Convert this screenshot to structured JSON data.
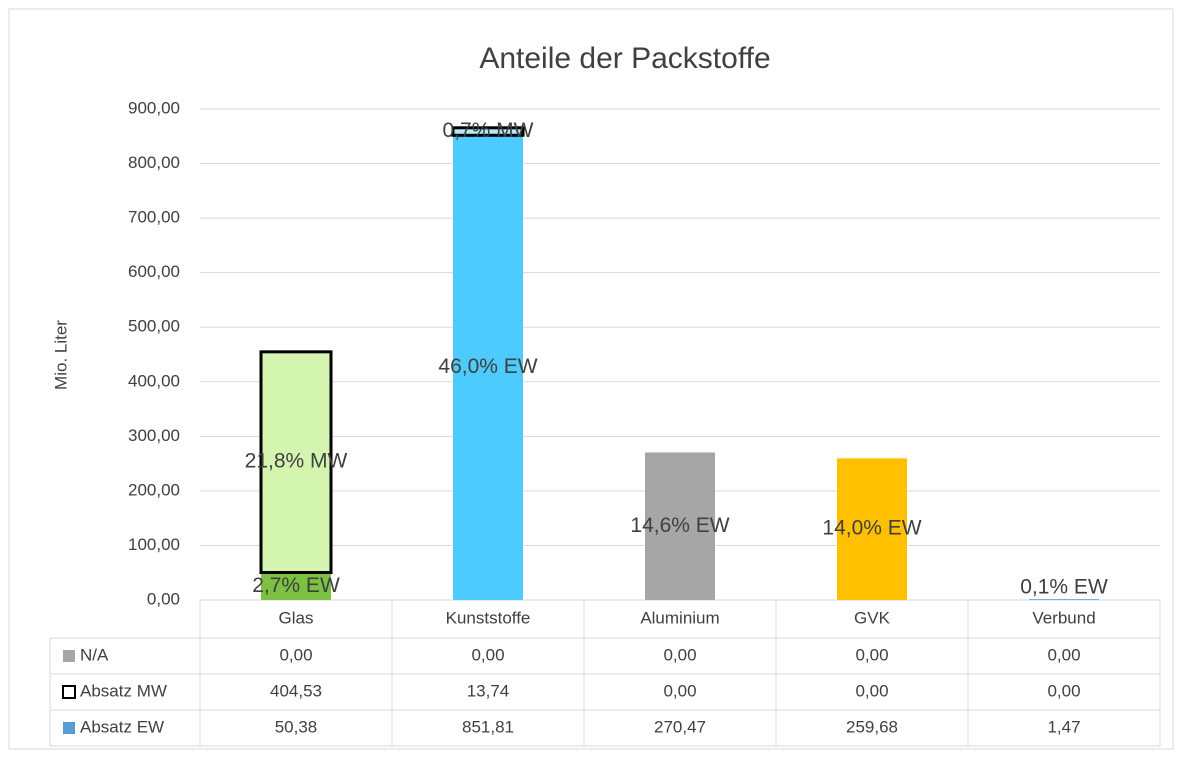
{
  "chart_data": {
    "type": "stacked_bar",
    "title": "Anteile der Packstoffe",
    "y_label": "Mio. Liter",
    "categories": [
      "Glas",
      "Kunststoffe",
      "Aluminium",
      "GVK",
      "Verbund"
    ],
    "ylim": [
      0,
      900
    ],
    "yticks": [
      {
        "value": 0,
        "label": "0,00"
      },
      {
        "value": 100,
        "label": "100,00"
      },
      {
        "value": 200,
        "label": "200,00"
      },
      {
        "value": 300,
        "label": "300,00"
      },
      {
        "value": 400,
        "label": "400,00"
      },
      {
        "value": 500,
        "label": "500,00"
      },
      {
        "value": 600,
        "label": "600,00"
      },
      {
        "value": 700,
        "label": "700,00"
      },
      {
        "value": 800,
        "label": "800,00"
      },
      {
        "value": 900,
        "label": "900,00"
      }
    ],
    "grid": true,
    "series": [
      {
        "name": "N/A",
        "color": "#a6a6a6",
        "values": [
          0,
          0,
          0,
          0,
          0
        ],
        "value_labels": [
          "0,00",
          "0,00",
          "0,00",
          "0,00",
          "0,00"
        ]
      },
      {
        "name": "Absatz MW",
        "color": "#ffffff",
        "colors": [
          "#d4f5b0",
          "#b8e6ff",
          "#d9d9d9",
          "#ffe699",
          "#bdd7ee"
        ],
        "values": [
          404.53,
          13.74,
          0,
          0,
          0
        ],
        "value_labels": [
          "404,53",
          "13,74",
          "0,00",
          "0,00",
          "0,00"
        ],
        "share_labels": [
          "21,8% MW",
          "0,7% MW",
          null,
          null,
          null
        ]
      },
      {
        "name": "Absatz EW",
        "color": "#5b9bd5",
        "colors": [
          "#7dc142",
          "#4dcbff",
          "#a6a6a6",
          "#ffc000",
          "#5b9bd5"
        ],
        "values": [
          50.38,
          851.81,
          270.47,
          259.68,
          1.47
        ],
        "value_labels": [
          "50,38",
          "851,81",
          "270,47",
          "259,68",
          "1,47"
        ],
        "share_labels": [
          "2,7% EW",
          "46,0% EW",
          "14,6% EW",
          "14,0% EW",
          "0,1% EW"
        ]
      }
    ]
  }
}
